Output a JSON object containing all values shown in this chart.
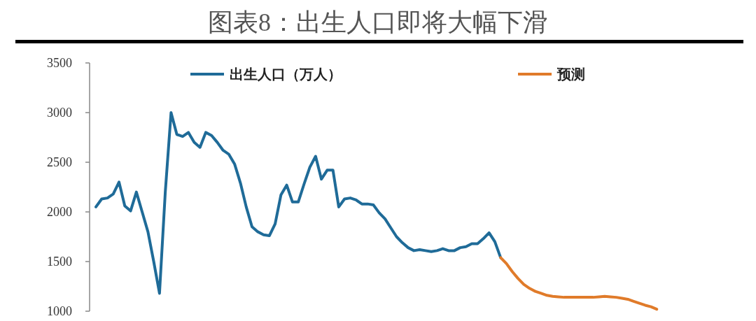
{
  "chart_data": {
    "type": "line",
    "title": "图表8：出生人口即将大幅下滑",
    "categories": [
      null,
      null,
      null,
      null,
      null,
      null,
      null,
      null,
      null,
      null,
      null,
      null,
      null,
      null,
      null,
      null,
      null,
      null,
      null,
      null,
      null,
      null,
      null,
      null,
      null,
      null,
      null,
      null,
      null,
      null,
      null,
      null,
      null,
      null,
      null,
      null,
      null,
      null,
      null,
      null,
      null,
      null,
      null,
      null,
      null,
      null,
      null,
      null,
      null,
      null,
      null,
      null,
      null,
      null,
      null,
      null,
      null,
      null,
      null,
      null,
      null,
      null,
      null,
      null,
      null,
      null,
      null,
      null,
      null,
      null,
      null,
      null,
      null,
      null,
      null,
      null,
      null,
      null,
      null,
      null,
      null,
      null,
      null,
      null,
      null,
      null,
      null,
      null,
      null,
      null,
      null,
      null,
      null,
      null,
      null,
      null,
      null,
      null
    ],
    "series": [
      {
        "name": "出生人口（万人）",
        "color": "#1f6b98",
        "values": [
          2050,
          2130,
          2140,
          2180,
          2300,
          2060,
          2010,
          2200,
          2000,
          1800,
          1500,
          1180,
          2200,
          3000,
          2780,
          2760,
          2800,
          2700,
          2650,
          2800,
          2770,
          2700,
          2620,
          2580,
          2480,
          2290,
          2050,
          1850,
          1800,
          1770,
          1760,
          1880,
          2170,
          2270,
          2100,
          2100,
          2280,
          2450,
          2560,
          2330,
          2420,
          2420,
          2050,
          2130,
          2140,
          2120,
          2080,
          2080,
          2070,
          1990,
          1930,
          1840,
          1750,
          1690,
          1640,
          1610,
          1620,
          1610,
          1600,
          1610,
          1630,
          1610,
          1610,
          1640,
          1650,
          1680,
          1680,
          1730,
          1790,
          1700,
          1540,
          null,
          null,
          null,
          null,
          null,
          null,
          null,
          null,
          null,
          null,
          null,
          null,
          null,
          null,
          null,
          null,
          null,
          null,
          null,
          null,
          null,
          null,
          null,
          null,
          null,
          null,
          null
        ]
      },
      {
        "name": "预测",
        "color": "#e07b2a",
        "values": [
          null,
          null,
          null,
          null,
          null,
          null,
          null,
          null,
          null,
          null,
          null,
          null,
          null,
          null,
          null,
          null,
          null,
          null,
          null,
          null,
          null,
          null,
          null,
          null,
          null,
          null,
          null,
          null,
          null,
          null,
          null,
          null,
          null,
          null,
          null,
          null,
          null,
          null,
          null,
          null,
          null,
          null,
          null,
          null,
          null,
          null,
          null,
          null,
          null,
          null,
          null,
          null,
          null,
          null,
          null,
          null,
          null,
          null,
          null,
          null,
          null,
          null,
          null,
          null,
          null,
          null,
          null,
          null,
          null,
          null,
          1540,
          1480,
          1400,
          1330,
          1270,
          1230,
          1200,
          1180,
          1160,
          1150,
          1145,
          1140,
          1140,
          1140,
          1140,
          1140,
          1140,
          1145,
          1150,
          1145,
          1140,
          1130,
          1120,
          1100,
          1080,
          1060,
          1045,
          1020
        ]
      }
    ],
    "ylim": [
      1000,
      3500
    ],
    "yticks": [
      1000,
      1500,
      2000,
      2500,
      3000,
      3500
    ],
    "tick_labels": "y",
    "legend": "top",
    "grid": false
  }
}
